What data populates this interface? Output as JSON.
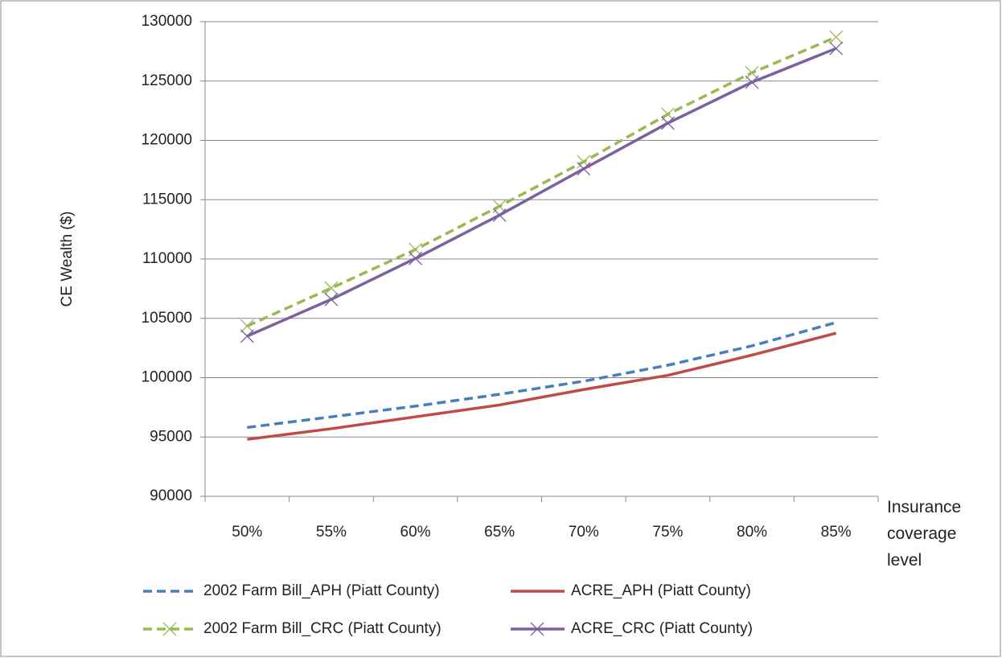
{
  "chart_data": {
    "type": "line",
    "y_label": "CE Wealth ($)",
    "x_label": "Insurance coverage level",
    "categories": [
      "50%",
      "55%",
      "60%",
      "65%",
      "70%",
      "75%",
      "80%",
      "85%"
    ],
    "ylim": [
      90000,
      130000
    ],
    "yticks": [
      90000,
      95000,
      100000,
      105000,
      110000,
      115000,
      120000,
      125000,
      130000
    ],
    "grid": true,
    "series": [
      {
        "name": "2002 Farm Bill_APH (Piatt County)",
        "color": "#4a7ebb",
        "dash": true,
        "marker": "none",
        "values": [
          95800,
          96700,
          97600,
          98600,
          99700,
          101050,
          102680,
          104650
        ]
      },
      {
        "name": "ACRE_APH (Piatt County)",
        "color": "#be4b48",
        "dash": false,
        "marker": "none",
        "values": [
          94800,
          95700,
          96700,
          97700,
          99000,
          100200,
          101900,
          103750
        ]
      },
      {
        "name": "2002 Farm Bill_CRC (Piatt County)",
        "color": "#98b954",
        "dash": true,
        "marker": "x",
        "values": [
          104350,
          107550,
          110800,
          114450,
          118200,
          122200,
          125700,
          128700
        ]
      },
      {
        "name": "ACRE_CRC (Piatt County)",
        "color": "#7d60a0",
        "dash": false,
        "marker": "x",
        "values": [
          103500,
          106600,
          110050,
          113700,
          117600,
          121450,
          124900,
          127750
        ]
      }
    ]
  }
}
